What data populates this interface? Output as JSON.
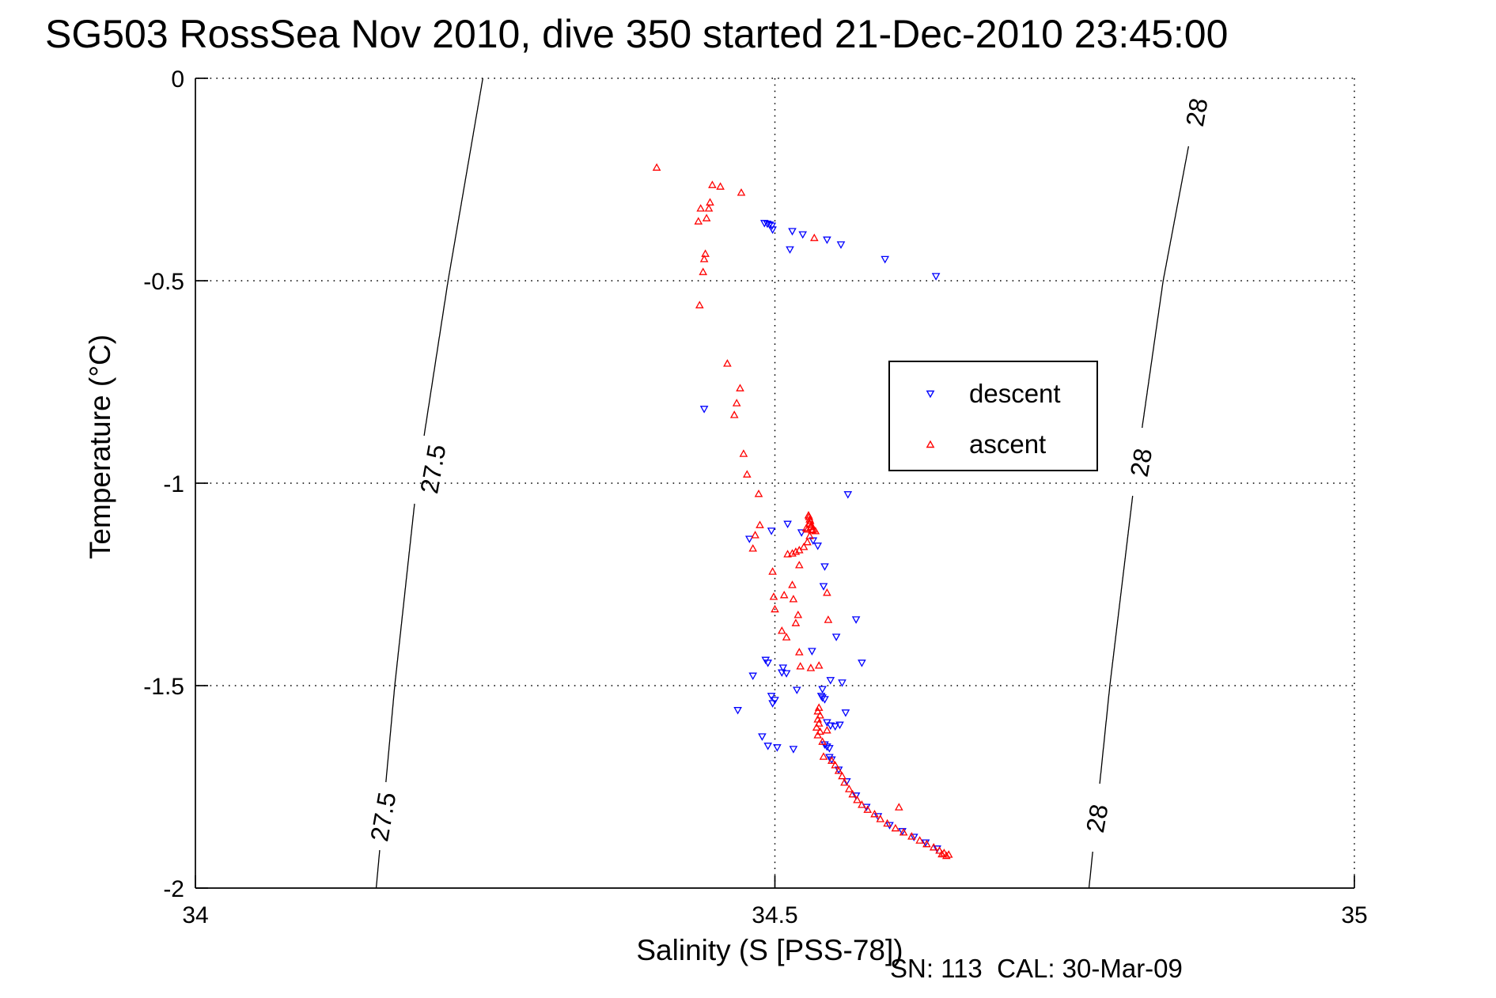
{
  "title": "SG503 RossSea Nov 2010, dive 350 started 21-Dec-2010 23:45:00",
  "footnote": "SN: 113  CAL: 30-Mar-09",
  "colors": {
    "descent": "#0000ff",
    "ascent": "#ff0000",
    "axis": "#000000",
    "grid": "#000000",
    "contour": "#000000",
    "background": "#ffffff"
  },
  "axes": {
    "xlabel": "Salinity (S [PSS-78])",
    "ylabel": "Temperature (°C)",
    "xlim": [
      34,
      35
    ],
    "ylim": [
      -2,
      0
    ],
    "x_ticks": [
      {
        "value": 34,
        "label": "34"
      },
      {
        "value": 34.5,
        "label": "34.5"
      },
      {
        "value": 35,
        "label": "35"
      }
    ],
    "y_ticks": [
      {
        "value": 0,
        "label": "0"
      },
      {
        "value": -0.5,
        "label": "-0.5"
      },
      {
        "value": -1,
        "label": "-1"
      },
      {
        "value": -1.5,
        "label": "-1.5"
      },
      {
        "value": -2,
        "label": "-2"
      }
    ],
    "grid": true,
    "grid_style": "dotted"
  },
  "legend": {
    "position": "upper-right-inside",
    "items": [
      {
        "label": "descent",
        "marker": "triangle-down",
        "color": "#0000ff"
      },
      {
        "label": "ascent",
        "marker": "triangle-up",
        "color": "#ff0000"
      }
    ]
  },
  "density_contours": [
    {
      "level": "27.5",
      "path_S_T": [
        [
          34.248,
          0
        ],
        [
          34.218,
          -0.5
        ],
        [
          34.191,
          -1.0
        ],
        [
          34.172,
          -1.5
        ],
        [
          34.156,
          -2.0
        ]
      ],
      "label_positions_S_T": [
        [
          34.205,
          -0.965
        ],
        [
          34.162,
          -1.824
        ]
      ]
    },
    {
      "level": "28",
      "path_S_T": [
        [
          34.868,
          0
        ],
        [
          34.835,
          -0.5
        ],
        [
          34.81,
          -1.0
        ],
        [
          34.789,
          -1.5
        ],
        [
          34.771,
          -2.0
        ]
      ],
      "label_positions_S_T": [
        [
          34.864,
          -0.084
        ],
        [
          34.816,
          -0.949
        ],
        [
          34.778,
          -1.828
        ]
      ]
    }
  ],
  "chart_data": {
    "type": "scatter",
    "title": "SG503 RossSea Nov 2010, dive 350 started 21-Dec-2010 23:45:00",
    "xlabel": "Salinity (S [PSS-78])",
    "ylabel": "Temperature (°C)",
    "xlim": [
      34,
      35
    ],
    "ylim": [
      -2,
      0
    ],
    "legend_position": "upper-right-inside",
    "series": [
      {
        "name": "descent",
        "marker": "triangle-down",
        "color": "#0000ff",
        "points": [
          [
            34.491,
            -0.357
          ],
          [
            34.4935,
            -0.3585
          ],
          [
            34.4955,
            -0.361
          ],
          [
            34.4975,
            -0.3635
          ],
          [
            34.498,
            -0.373
          ],
          [
            34.515,
            -0.377
          ],
          [
            34.524,
            -0.385
          ],
          [
            34.513,
            -0.422
          ],
          [
            34.545,
            -0.398
          ],
          [
            34.557,
            -0.41
          ],
          [
            34.595,
            -0.446
          ],
          [
            34.639,
            -0.488
          ],
          [
            34.439,
            -0.816
          ],
          [
            34.563,
            -1.027
          ],
          [
            34.511,
            -1.1
          ],
          [
            34.523,
            -1.121
          ],
          [
            34.533,
            -1.141
          ],
          [
            34.537,
            -1.154
          ],
          [
            34.497,
            -1.117
          ],
          [
            34.478,
            -1.137
          ],
          [
            34.543,
            -1.205
          ],
          [
            34.542,
            -1.254
          ],
          [
            34.57,
            -1.336
          ],
          [
            34.553,
            -1.379
          ],
          [
            34.532,
            -1.414
          ],
          [
            34.492,
            -1.436
          ],
          [
            34.494,
            -1.443
          ],
          [
            34.507,
            -1.455
          ],
          [
            34.506,
            -1.467
          ],
          [
            34.51,
            -1.469
          ],
          [
            34.481,
            -1.475
          ],
          [
            34.575,
            -1.443
          ],
          [
            34.548,
            -1.486
          ],
          [
            34.558,
            -1.492
          ],
          [
            34.519,
            -1.51
          ],
          [
            34.541,
            -1.508
          ],
          [
            34.497,
            -1.525
          ],
          [
            34.5,
            -1.535
          ],
          [
            34.498,
            -1.543
          ],
          [
            34.54,
            -1.525
          ],
          [
            34.541,
            -1.529
          ],
          [
            34.543,
            -1.533
          ],
          [
            34.468,
            -1.56
          ],
          [
            34.561,
            -1.566
          ],
          [
            34.545,
            -1.59
          ],
          [
            34.548,
            -1.598
          ],
          [
            34.552,
            -1.6
          ],
          [
            34.556,
            -1.596
          ],
          [
            34.489,
            -1.625
          ],
          [
            34.494,
            -1.648
          ],
          [
            34.502,
            -1.652
          ],
          [
            34.516,
            -1.656
          ],
          [
            34.543,
            -1.645
          ],
          [
            34.545,
            -1.65
          ],
          [
            34.547,
            -1.654
          ],
          [
            34.547,
            -1.676
          ],
          [
            34.549,
            -1.682
          ],
          [
            34.555,
            -1.707
          ],
          [
            34.562,
            -1.736
          ],
          [
            34.57,
            -1.771
          ],
          [
            34.579,
            -1.799
          ],
          [
            34.589,
            -1.822
          ],
          [
            34.599,
            -1.844
          ],
          [
            34.61,
            -1.859
          ],
          [
            34.62,
            -1.873
          ],
          [
            34.63,
            -1.887
          ],
          [
            34.64,
            -1.902
          ]
        ]
      },
      {
        "name": "ascent",
        "marker": "triangle-up",
        "color": "#ff0000",
        "points": [
          [
            34.398,
            -0.221
          ],
          [
            34.446,
            -0.264
          ],
          [
            34.453,
            -0.268
          ],
          [
            34.471,
            -0.283
          ],
          [
            34.444,
            -0.307
          ],
          [
            34.436,
            -0.322
          ],
          [
            34.443,
            -0.322
          ],
          [
            34.441,
            -0.346
          ],
          [
            34.434,
            -0.354
          ],
          [
            34.44,
            -0.434
          ],
          [
            34.439,
            -0.447
          ],
          [
            34.438,
            -0.479
          ],
          [
            34.435,
            -0.561
          ],
          [
            34.459,
            -0.705
          ],
          [
            34.47,
            -0.766
          ],
          [
            34.467,
            -0.803
          ],
          [
            34.465,
            -0.832
          ],
          [
            34.473,
            -0.928
          ],
          [
            34.476,
            -0.979
          ],
          [
            34.486,
            -1.027
          ],
          [
            34.534,
            -0.395
          ],
          [
            34.529,
            -1.08
          ],
          [
            34.53,
            -1.09
          ],
          [
            34.53,
            -1.1
          ],
          [
            34.531,
            -1.109
          ],
          [
            34.528,
            -1.115
          ],
          [
            34.532,
            -1.117
          ],
          [
            34.5295,
            -1.084
          ],
          [
            34.5305,
            -1.094
          ],
          [
            34.5315,
            -1.104
          ],
          [
            34.527,
            -1.112
          ],
          [
            34.533,
            -1.115
          ],
          [
            34.535,
            -1.119
          ],
          [
            34.53,
            -1.131
          ],
          [
            34.528,
            -1.146
          ],
          [
            34.525,
            -1.158
          ],
          [
            34.521,
            -1.166
          ],
          [
            34.518,
            -1.17
          ],
          [
            34.515,
            -1.174
          ],
          [
            34.511,
            -1.176
          ],
          [
            34.487,
            -1.104
          ],
          [
            34.483,
            -1.129
          ],
          [
            34.481,
            -1.162
          ],
          [
            34.498,
            -1.219
          ],
          [
            34.521,
            -1.203
          ],
          [
            34.515,
            -1.252
          ],
          [
            34.545,
            -1.271
          ],
          [
            34.499,
            -1.281
          ],
          [
            34.508,
            -1.277
          ],
          [
            34.516,
            -1.287
          ],
          [
            34.5,
            -1.312
          ],
          [
            34.52,
            -1.326
          ],
          [
            34.546,
            -1.338
          ],
          [
            34.518,
            -1.346
          ],
          [
            34.506,
            -1.365
          ],
          [
            34.51,
            -1.381
          ],
          [
            34.521,
            -1.418
          ],
          [
            34.522,
            -1.453
          ],
          [
            34.538,
            -1.451
          ],
          [
            34.531,
            -1.457
          ],
          [
            34.538,
            -1.555
          ],
          [
            34.537,
            -1.564
          ],
          [
            34.539,
            -1.574
          ],
          [
            34.537,
            -1.584
          ],
          [
            34.538,
            -1.594
          ],
          [
            34.536,
            -1.604
          ],
          [
            34.539,
            -1.614
          ],
          [
            34.537,
            -1.623
          ],
          [
            34.545,
            -1.611
          ],
          [
            34.541,
            -1.639
          ],
          [
            34.542,
            -1.676
          ],
          [
            34.549,
            -1.686
          ],
          [
            34.552,
            -1.697
          ],
          [
            34.555,
            -1.711
          ],
          [
            34.558,
            -1.724
          ],
          [
            34.56,
            -1.74
          ],
          [
            34.564,
            -1.756
          ],
          [
            34.567,
            -1.769
          ],
          [
            34.571,
            -1.783
          ],
          [
            34.575,
            -1.795
          ],
          [
            34.58,
            -1.807
          ],
          [
            34.586,
            -1.818
          ],
          [
            34.591,
            -1.83
          ],
          [
            34.597,
            -1.841
          ],
          [
            34.604,
            -1.853
          ],
          [
            34.611,
            -1.863
          ],
          [
            34.618,
            -1.873
          ],
          [
            34.625,
            -1.883
          ],
          [
            34.631,
            -1.892
          ],
          [
            34.637,
            -1.9
          ],
          [
            34.642,
            -1.908
          ],
          [
            34.646,
            -1.914
          ],
          [
            34.65,
            -1.918
          ],
          [
            34.648,
            -1.921
          ],
          [
            34.644,
            -1.917
          ],
          [
            34.607,
            -1.801
          ]
        ]
      }
    ]
  }
}
